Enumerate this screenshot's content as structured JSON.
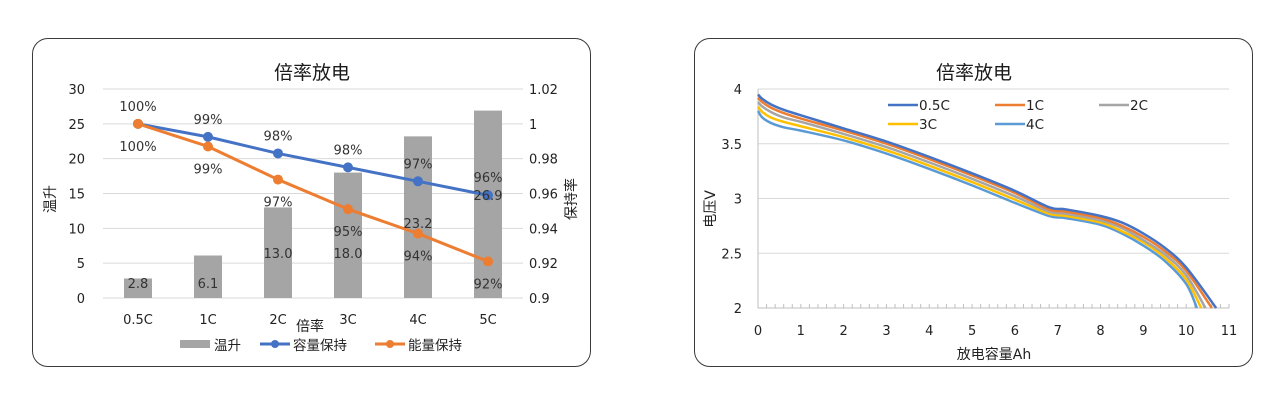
{
  "chart_data": [
    {
      "type": "bar+line",
      "title": "倍率放电",
      "xlabel": "倍率",
      "ylabel": "温升",
      "y2label": "保持率",
      "categories": [
        "0.5C",
        "1C",
        "2C",
        "3C",
        "4C",
        "5C"
      ],
      "ylim": [
        0,
        30
      ],
      "yticks": [
        "0",
        "5",
        "10",
        "15",
        "20",
        "25",
        "30"
      ],
      "y2lim": [
        0.9,
        1.02
      ],
      "y2ticks": [
        "0.9",
        "0.92",
        "0.94",
        "0.96",
        "0.98",
        "1",
        "1.02"
      ],
      "grid": true,
      "legend_position": "bottom",
      "series": [
        {
          "name": "温升",
          "kind": "bar",
          "axis": "left",
          "color": "#a5a5a5",
          "values": [
            2.8,
            6.1,
            13.0,
            18.0,
            23.2,
            26.9
          ],
          "labels": [
            "2.8",
            "6.1",
            "13.0",
            "18.0",
            "23.2",
            "26.9"
          ]
        },
        {
          "name": "容量保持",
          "kind": "line",
          "axis": "right",
          "color": "#4472c4",
          "values": [
            1.0,
            0.9925,
            0.983,
            0.975,
            0.967,
            0.959
          ],
          "labels": [
            "100%",
            "99%",
            "98%",
            "98%",
            "97%",
            "96%"
          ]
        },
        {
          "name": "能量保持",
          "kind": "line",
          "axis": "right",
          "color": "#ed7d31",
          "values": [
            1.0,
            0.987,
            0.968,
            0.951,
            0.937,
            0.921
          ],
          "labels": [
            "100%",
            "99%",
            "97%",
            "95%",
            "94%",
            "92%"
          ]
        }
      ]
    },
    {
      "type": "line",
      "title": "倍率放电",
      "xlabel": "放电容量Ah",
      "ylabel": "电压V",
      "xlim": [
        0,
        11
      ],
      "xticks": [
        "0",
        "1",
        "2",
        "3",
        "4",
        "5",
        "6",
        "7",
        "8",
        "9",
        "10",
        "11"
      ],
      "ylim": [
        2,
        4
      ],
      "yticks": [
        "2",
        "2.5",
        "3",
        "3.5",
        "4"
      ],
      "grid": true,
      "legend_position": "top-right",
      "x": [
        0,
        0.1,
        0.3,
        0.6,
        1,
        2,
        3,
        4,
        5,
        6,
        6.8,
        7.2,
        8,
        8.5,
        9,
        9.5,
        10
      ],
      "series": [
        {
          "name": "0.5C",
          "color": "#4472c4",
          "end_x": 10.7,
          "values": [
            3.95,
            3.91,
            3.86,
            3.81,
            3.76,
            3.64,
            3.52,
            3.38,
            3.23,
            3.07,
            2.92,
            2.9,
            2.84,
            2.78,
            2.68,
            2.55,
            2.37
          ]
        },
        {
          "name": "1C",
          "color": "#ed7d31",
          "end_x": 10.6,
          "values": [
            3.92,
            3.88,
            3.83,
            3.78,
            3.73,
            3.62,
            3.5,
            3.36,
            3.21,
            3.05,
            2.9,
            2.88,
            2.82,
            2.75,
            2.65,
            2.52,
            2.34
          ]
        },
        {
          "name": "2C",
          "color": "#a5a5a5",
          "end_x": 10.45,
          "values": [
            3.88,
            3.84,
            3.79,
            3.74,
            3.7,
            3.59,
            3.47,
            3.33,
            3.18,
            3.02,
            2.88,
            2.86,
            2.8,
            2.73,
            2.62,
            2.49,
            2.3
          ]
        },
        {
          "name": "3C",
          "color": "#ffc000",
          "end_x": 10.35,
          "values": [
            3.84,
            3.79,
            3.74,
            3.7,
            3.66,
            3.56,
            3.44,
            3.3,
            3.15,
            2.99,
            2.86,
            2.84,
            2.78,
            2.7,
            2.6,
            2.46,
            2.26
          ]
        },
        {
          "name": "4C",
          "color": "#5b9bd5",
          "end_x": 10.25,
          "values": [
            3.8,
            3.74,
            3.69,
            3.65,
            3.62,
            3.53,
            3.41,
            3.27,
            3.12,
            2.96,
            2.84,
            2.82,
            2.76,
            2.68,
            2.57,
            2.43,
            2.22
          ]
        }
      ]
    }
  ]
}
